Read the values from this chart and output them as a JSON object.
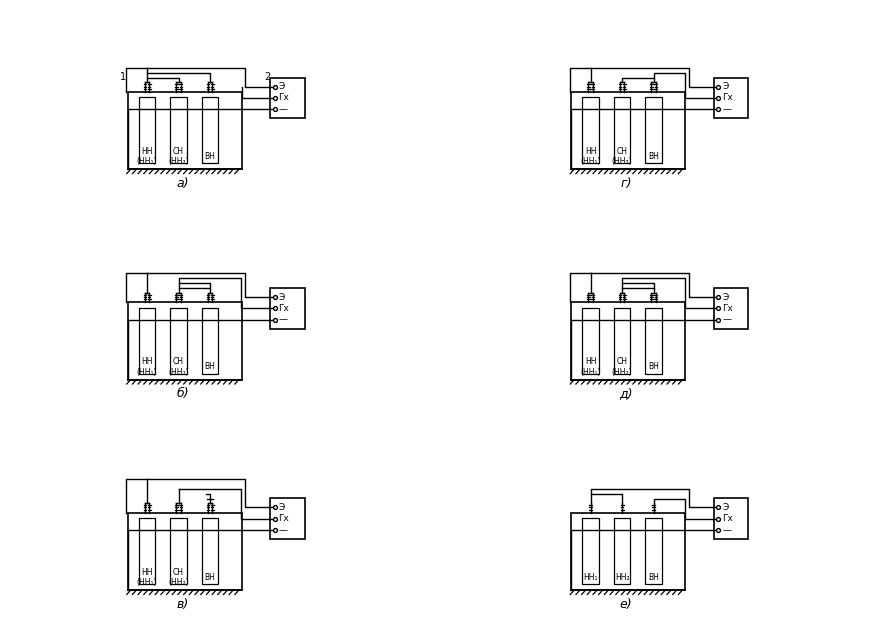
{
  "background_color": "#ffffff",
  "line_color": "#000000",
  "panels": [
    {
      "label": "а)",
      "col": 0,
      "row": 0
    },
    {
      "label": "г)",
      "col": 1,
      "row": 0
    },
    {
      "label": "б)",
      "col": 0,
      "row": 1
    },
    {
      "label": "д)",
      "col": 1,
      "row": 1
    },
    {
      "label": "в)",
      "col": 0,
      "row": 2
    },
    {
      "label": "е)",
      "col": 1,
      "row": 2
    }
  ],
  "winding_labels": [
    [
      "НН\n(НН₁)",
      "СН\n(НН₂)",
      "ВН"
    ],
    [
      "НН\n(НН₁)",
      "СН\n(НН₂)",
      "ВН"
    ],
    [
      "НН\n(НН₁)",
      "СН\n(НН₂)",
      "ВН"
    ],
    [
      "НН\n(НН₁)",
      "СН\n(НН₂)",
      "ВН"
    ],
    [
      "НН\n(НН₁)",
      "СН\n(НН₂)",
      "ВН"
    ],
    [
      "НН₁",
      "НН₂",
      "ВН"
    ]
  ],
  "meter_labels": [
    "Э",
    "Гх",
    "—"
  ],
  "label1": "1",
  "label2": "2"
}
